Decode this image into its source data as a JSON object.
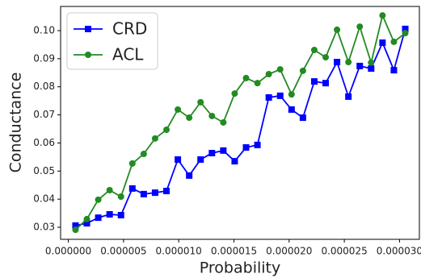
{
  "chart_data": {
    "type": "line",
    "x_label": "Probability",
    "y_label": "Conductance",
    "x": [
      6.5e-07,
      1.68e-06,
      2.71e-06,
      3.74e-06,
      4.77e-06,
      5.8e-06,
      6.83e-06,
      7.86e-06,
      8.89e-06,
      9.92e-06,
      1.095e-05,
      1.198e-05,
      1.301e-05,
      1.404e-05,
      1.507e-05,
      1.61e-05,
      1.713e-05,
      1.816e-05,
      1.919e-05,
      2.022e-05,
      2.125e-05,
      2.228e-05,
      2.331e-05,
      2.434e-05,
      2.537e-05,
      2.64e-05,
      2.743e-05,
      2.846e-05,
      2.949e-05,
      3.052e-05
    ],
    "series": [
      {
        "name": "CRD",
        "color": "#0000ff",
        "marker": "square",
        "values": [
          0.0306,
          0.0314,
          0.0334,
          0.0346,
          0.0343,
          0.0438,
          0.0418,
          0.0423,
          0.0429,
          0.0541,
          0.0484,
          0.0541,
          0.0564,
          0.0573,
          0.0535,
          0.0584,
          0.0593,
          0.0762,
          0.0768,
          0.0719,
          0.069,
          0.0819,
          0.0813,
          0.0888,
          0.0765,
          0.0874,
          0.0865,
          0.0957,
          0.0859,
          0.1006
        ]
      },
      {
        "name": "ACL",
        "color": "#228b22",
        "marker": "circle",
        "values": [
          0.0291,
          0.0329,
          0.0398,
          0.0432,
          0.0409,
          0.0527,
          0.0561,
          0.0616,
          0.0647,
          0.0719,
          0.069,
          0.0745,
          0.0696,
          0.0673,
          0.0776,
          0.0831,
          0.0813,
          0.0845,
          0.0862,
          0.0773,
          0.0857,
          0.0931,
          0.0905,
          0.1003,
          0.0888,
          0.1014,
          0.0886,
          0.1054,
          0.096,
          0.0991
        ]
      }
    ],
    "xlim": [
      -7e-07,
      3.18e-05
    ],
    "xticks": [
      {
        "value": 0,
        "label": "0.000000"
      },
      {
        "value": 5e-06,
        "label": "0.000005"
      },
      {
        "value": 1e-05,
        "label": "0.000010"
      },
      {
        "value": 1.5e-05,
        "label": "0.000015"
      },
      {
        "value": 2e-05,
        "label": "0.000020"
      },
      {
        "value": 2.5e-05,
        "label": "0.000025"
      },
      {
        "value": 3e-05,
        "label": "0.000030"
      }
    ],
    "ylim": [
      0.0257,
      0.1086
    ],
    "yticks": [
      0.03,
      0.04,
      0.05,
      0.06,
      0.07,
      0.08,
      0.09,
      {
        "value": 0.1,
        "label": "0.10"
      }
    ],
    "legend": "upper left",
    "grid": false
  }
}
